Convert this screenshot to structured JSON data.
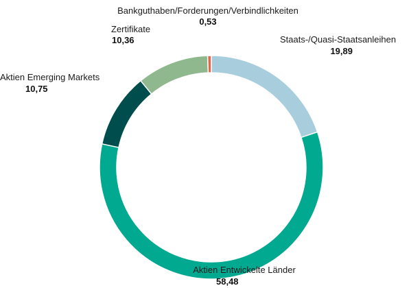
{
  "chart_data": {
    "type": "pie",
    "donut": true,
    "legend": "none",
    "slices": [
      {
        "label": "Staats-/Quasi-Staatsanleihen",
        "value": 19.89,
        "value_label": "19,89",
        "color": "#a8cddd"
      },
      {
        "label": "Aktien Entwickelte Länder",
        "value": 58.48,
        "value_label": "58,48",
        "color": "#00a98f"
      },
      {
        "label": "Aktien Emerging Markets",
        "value": 10.75,
        "value_label": "10,75",
        "color": "#004d4d"
      },
      {
        "label": "Zertifikate",
        "value": 10.36,
        "value_label": "10,36",
        "color": "#8fb88f"
      },
      {
        "label": "Bankguthaben/Forderungen/Verbindlichkeiten",
        "value": 0.53,
        "value_label": "0,53",
        "color": "#e06a4e"
      }
    ]
  }
}
